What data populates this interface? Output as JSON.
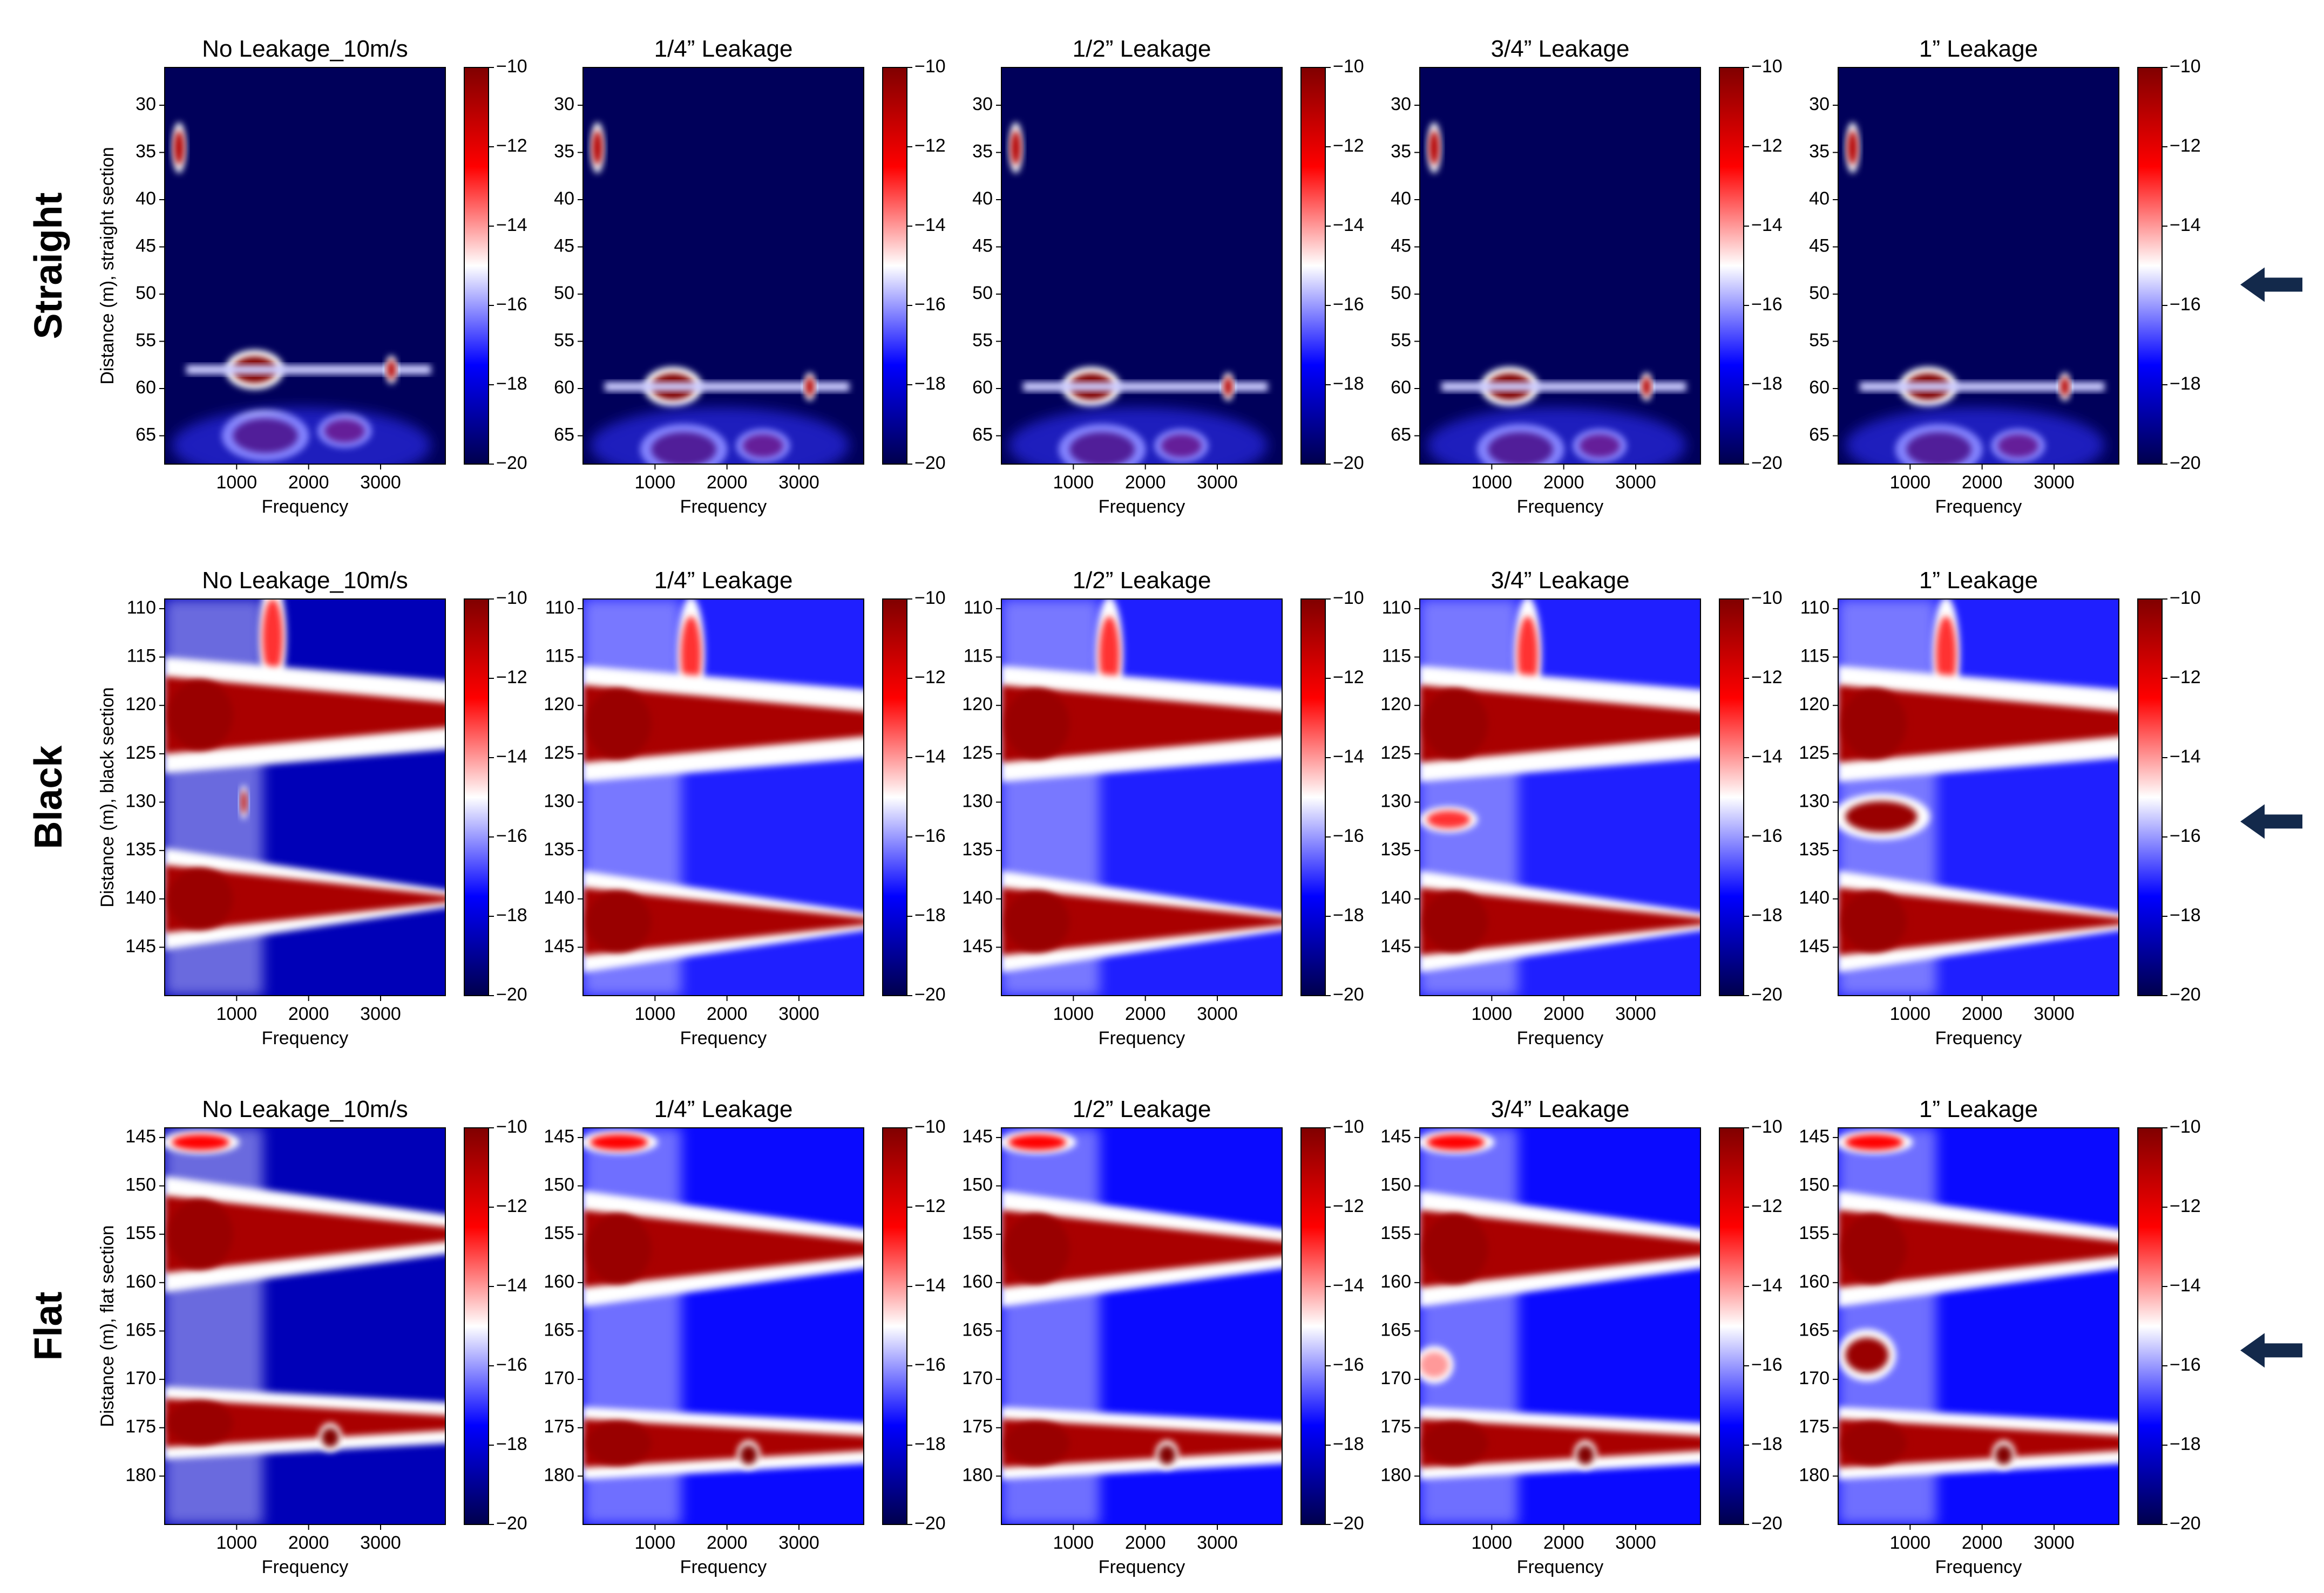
{
  "chart_data": {
    "type": "heatmap",
    "description_units": "log-magnitude",
    "colormap": {
      "name": "seismic",
      "low": "#00004c",
      "mid": "#ffffff",
      "high": "#800000"
    },
    "colorbar": {
      "range": [
        -20,
        -10
      ],
      "ticks": [
        -10,
        -12,
        -14,
        -16,
        -18,
        -20
      ],
      "tick_labels": [
        "−10",
        "−12",
        "−14",
        "−16",
        "−18",
        "−20"
      ]
    },
    "column_titles": [
      "No Leakage_10m/s",
      "1/4” Leakage",
      "1/2” Leakage",
      "3/4” Leakage",
      "1” Leakage"
    ],
    "xlabel": "Frequency",
    "x_ticks": [
      1000,
      2000,
      3000
    ],
    "x_tick_labels": [
      "1000",
      "2000",
      "3000"
    ],
    "x_range": [
      0,
      3900
    ],
    "rows": [
      {
        "label": "Straight",
        "ylabel": "Distance (m), straight section",
        "y_range": [
          26,
          68
        ],
        "y_ticks": [
          30,
          35,
          40,
          45,
          50,
          55,
          60,
          65
        ],
        "y_tick_labels": [
          "30",
          "35",
          "40",
          "45",
          "50",
          "55",
          "60",
          "65"
        ],
        "background_level": -19.8,
        "arrow_at_distance": 49
      },
      {
        "label": "Black",
        "ylabel": "Distance (m), black section",
        "y_range": [
          109,
          150
        ],
        "y_ticks": [
          110,
          115,
          120,
          125,
          130,
          135,
          140,
          145
        ],
        "y_tick_labels": [
          "110",
          "115",
          "120",
          "125",
          "130",
          "135",
          "140",
          "145"
        ],
        "background_level": -17.2,
        "arrow_at_distance": 132
      },
      {
        "label": "Flat",
        "ylabel": "Distance (m), flat section",
        "y_range": [
          144,
          185
        ],
        "y_ticks": [
          145,
          150,
          155,
          160,
          165,
          170,
          175,
          180
        ],
        "y_tick_labels": [
          "145",
          "150",
          "155",
          "160",
          "165",
          "170",
          "175",
          "180"
        ],
        "background_level": -17.4,
        "arrow_at_distance": 167
      }
    ]
  }
}
